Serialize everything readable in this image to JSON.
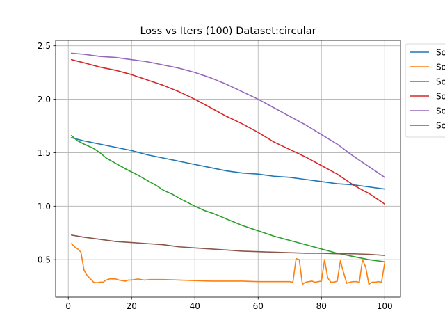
{
  "chart_data": {
    "type": "line",
    "title": "Loss vs Iters (100) Dataset:circular",
    "xlabel": "",
    "ylabel": "",
    "xlim": [
      -4,
      105
    ],
    "ylim": [
      0.15,
      2.55
    ],
    "xticks": [
      0,
      20,
      40,
      60,
      80,
      100
    ],
    "yticks": [
      0.5,
      1.0,
      1.5,
      2.0,
      2.5
    ],
    "xtick_labels": [
      "0",
      "20",
      "40",
      "60",
      "80",
      "100"
    ],
    "ytick_labels": [
      "0.5",
      "1.0",
      "1.5",
      "2.0",
      "2.5"
    ],
    "grid": true,
    "legend_position": "upper-right-outside",
    "series": [
      {
        "name": "So",
        "color": "#1f77b4",
        "x": [
          1,
          5,
          10,
          15,
          20,
          25,
          30,
          35,
          40,
          45,
          50,
          55,
          60,
          65,
          70,
          75,
          80,
          85,
          90,
          95,
          100
        ],
        "values": [
          1.64,
          1.61,
          1.58,
          1.55,
          1.52,
          1.48,
          1.45,
          1.42,
          1.39,
          1.36,
          1.33,
          1.31,
          1.3,
          1.28,
          1.27,
          1.25,
          1.23,
          1.21,
          1.2,
          1.18,
          1.16
        ]
      },
      {
        "name": "So",
        "color": "#ff7f0e",
        "x": [
          1,
          2,
          3,
          4,
          5,
          6,
          7,
          8,
          9,
          10,
          11,
          12,
          13,
          14,
          15,
          16,
          17,
          18,
          19,
          20,
          22,
          24,
          26,
          28,
          30,
          35,
          40,
          45,
          50,
          55,
          60,
          65,
          70,
          71,
          72,
          73,
          74,
          75,
          76,
          77,
          78,
          79,
          80,
          81,
          82,
          83,
          84,
          85,
          86,
          87,
          88,
          89,
          90,
          91,
          92,
          93,
          94,
          95,
          96,
          97,
          98,
          99,
          100
        ],
        "values": [
          0.65,
          0.62,
          0.6,
          0.57,
          0.4,
          0.35,
          0.32,
          0.29,
          0.285,
          0.29,
          0.29,
          0.31,
          0.32,
          0.32,
          0.32,
          0.31,
          0.305,
          0.3,
          0.31,
          0.31,
          0.32,
          0.31,
          0.315,
          0.315,
          0.315,
          0.31,
          0.305,
          0.3,
          0.3,
          0.3,
          0.295,
          0.295,
          0.295,
          0.29,
          0.51,
          0.5,
          0.27,
          0.29,
          0.295,
          0.3,
          0.29,
          0.295,
          0.3,
          0.5,
          0.33,
          0.29,
          0.29,
          0.3,
          0.49,
          0.38,
          0.28,
          0.29,
          0.295,
          0.295,
          0.29,
          0.5,
          0.43,
          0.27,
          0.29,
          0.29,
          0.295,
          0.29,
          0.47
        ]
      },
      {
        "name": "So",
        "color": "#2ca02c",
        "x": [
          1,
          3,
          5,
          8,
          10,
          12,
          15,
          18,
          20,
          22,
          25,
          28,
          30,
          33,
          36,
          40,
          43,
          46,
          50,
          55,
          60,
          65,
          70,
          75,
          80,
          85,
          90,
          95,
          100
        ],
        "values": [
          1.66,
          1.61,
          1.58,
          1.54,
          1.5,
          1.45,
          1.4,
          1.35,
          1.32,
          1.29,
          1.24,
          1.19,
          1.15,
          1.11,
          1.06,
          1.0,
          0.96,
          0.93,
          0.88,
          0.82,
          0.77,
          0.72,
          0.68,
          0.64,
          0.6,
          0.56,
          0.53,
          0.5,
          0.48
        ]
      },
      {
        "name": "So",
        "color": "#d62728",
        "x": [
          1,
          5,
          10,
          15,
          20,
          25,
          30,
          35,
          40,
          45,
          50,
          55,
          60,
          65,
          70,
          75,
          80,
          85,
          90,
          93,
          95,
          98,
          100
        ],
        "values": [
          2.37,
          2.34,
          2.3,
          2.27,
          2.23,
          2.18,
          2.13,
          2.07,
          2.0,
          1.92,
          1.84,
          1.77,
          1.69,
          1.6,
          1.53,
          1.46,
          1.38,
          1.3,
          1.2,
          1.15,
          1.12,
          1.06,
          1.02
        ]
      },
      {
        "name": "So",
        "color": "#9467bd",
        "x": [
          1,
          5,
          10,
          15,
          20,
          25,
          30,
          35,
          40,
          45,
          50,
          55,
          60,
          65,
          70,
          75,
          80,
          85,
          90,
          95,
          100
        ],
        "values": [
          2.43,
          2.42,
          2.4,
          2.39,
          2.37,
          2.35,
          2.32,
          2.29,
          2.25,
          2.2,
          2.14,
          2.07,
          2.0,
          1.92,
          1.84,
          1.76,
          1.67,
          1.58,
          1.47,
          1.37,
          1.27
        ]
      },
      {
        "name": "So",
        "color": "#8c564b",
        "x": [
          1,
          5,
          10,
          15,
          20,
          25,
          30,
          35,
          40,
          45,
          50,
          55,
          60,
          65,
          70,
          75,
          80,
          85,
          90,
          95,
          100
        ],
        "values": [
          0.73,
          0.71,
          0.69,
          0.67,
          0.66,
          0.65,
          0.64,
          0.62,
          0.61,
          0.6,
          0.59,
          0.58,
          0.575,
          0.57,
          0.565,
          0.56,
          0.56,
          0.555,
          0.555,
          0.55,
          0.54
        ]
      }
    ]
  }
}
